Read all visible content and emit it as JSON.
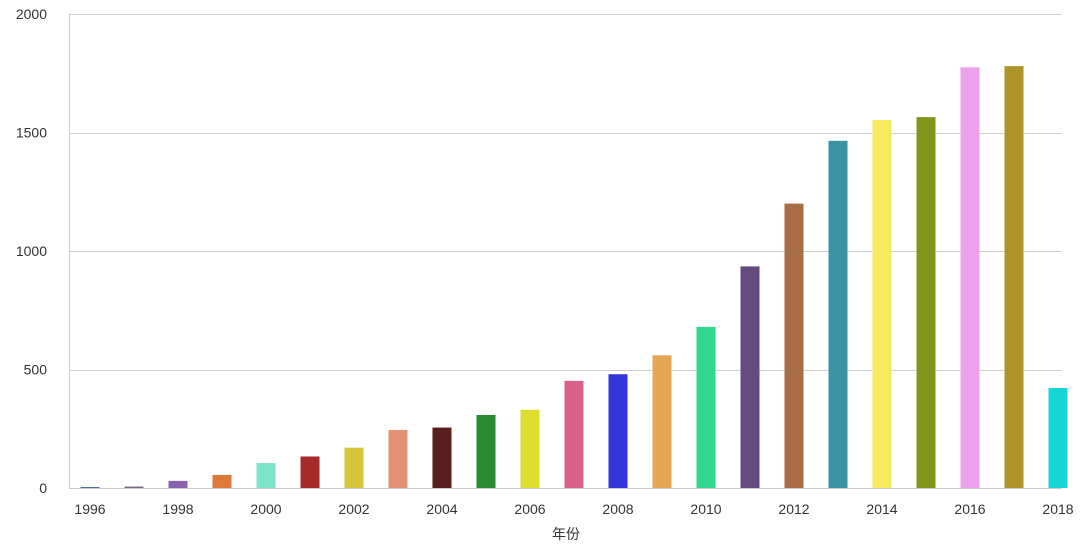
{
  "chart_data": {
    "type": "bar",
    "title": "",
    "xlabel": "年份",
    "ylabel": "",
    "ylim": [
      0,
      2000
    ],
    "yticks": [
      0,
      500,
      1000,
      1500,
      2000
    ],
    "grid": true,
    "legend": "none",
    "categories": [
      "1996",
      "1997",
      "1998",
      "1999",
      "2000",
      "2001",
      "2002",
      "2003",
      "2004",
      "2005",
      "2006",
      "2007",
      "2008",
      "2009",
      "2010",
      "2011",
      "2012",
      "2013",
      "2014",
      "2015",
      "2016",
      "2017",
      "2018"
    ],
    "x_tick_labels": [
      "1996",
      "1998",
      "2000",
      "2002",
      "2004",
      "2006",
      "2008",
      "2010",
      "2012",
      "2014",
      "2016",
      "2018"
    ],
    "values": [
      1,
      6,
      30,
      55,
      105,
      133,
      170,
      245,
      255,
      308,
      330,
      452,
      480,
      560,
      680,
      935,
      1200,
      1465,
      1553,
      1565,
      1775,
      1780,
      422
    ],
    "colors": [
      "#1f4e8c",
      "#7a6b86",
      "#8a63b0",
      "#dd7a3a",
      "#7ee3c8",
      "#a62b2b",
      "#d6c63e",
      "#e49073",
      "#5a1e1e",
      "#2a8a34",
      "#dede2e",
      "#d9608a",
      "#3434dd",
      "#e3a753",
      "#30d98e",
      "#654a80",
      "#a86d45",
      "#3b93a2",
      "#f5ea5f",
      "#84951c",
      "#eda0ec",
      "#ac9428",
      "#16d7d5"
    ]
  }
}
